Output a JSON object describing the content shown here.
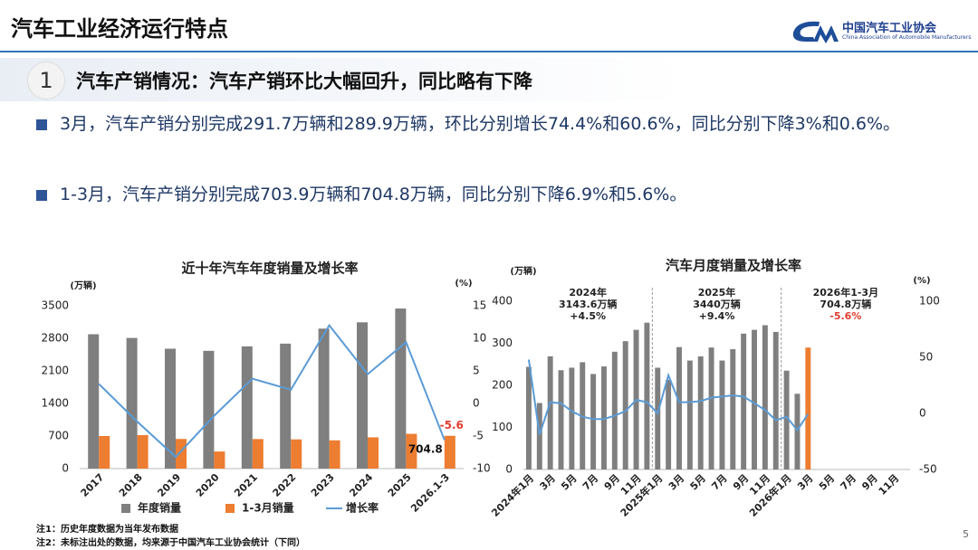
{
  "header": {
    "title": "汽车工业经济运行特点",
    "org_cn": "中国汽车工业协会",
    "org_en": "China Association of Automobile Manufacturers"
  },
  "section": {
    "number": "1",
    "title": "汽车产销情况：汽车产销环比大幅回升，同比略有下降"
  },
  "bullets": [
    "3月，汽车产销分别完成291.7万辆和289.9万辆，环比分别增长74.4%和60.6%，同比分别下降3%和0.6%。",
    "1-3月，汽车产销分别完成703.9万辆和704.8万辆，同比分别下降6.9%和5.6%。"
  ],
  "chart_data": [
    {
      "type": "bar",
      "bar_mode": "group",
      "title": "近十年汽车年度销量及增长率",
      "y_label": "(万辆)",
      "y2_label": "(%)",
      "categories": [
        "2017",
        "2018",
        "2019",
        "2020",
        "2021",
        "2022",
        "2023",
        "2024",
        "2025",
        "2026.1-3"
      ],
      "series": [
        {
          "name": "年度销量",
          "color": "#7f7f7f",
          "values": [
            2888,
            2808,
            2577,
            2531,
            2627,
            2686,
            3009,
            3144,
            3440,
            null
          ]
        },
        {
          "name": "1-3月销量",
          "color": "#ed7d31",
          "values": [
            700,
            720,
            637,
            367,
            635,
            628,
            607,
            672,
            747,
            704.8
          ],
          "label_last": true
        },
        {
          "name": "增长率",
          "type": "line",
          "axis": "y2",
          "color": "#5b9bd5",
          "values": [
            3,
            -2.8,
            -8.2,
            -1.9,
            3.8,
            2.1,
            12,
            4.5,
            9.4,
            -5.6
          ],
          "label_last": true,
          "label_color": "#e03c31"
        }
      ],
      "ylim": [
        0,
        3500
      ],
      "yticks": [
        0,
        700,
        1400,
        2100,
        2800,
        3500
      ],
      "y2lim": [
        -10,
        15
      ],
      "y2ticks": [
        -10,
        -5,
        0,
        5,
        10,
        15
      ],
      "grid": false,
      "legend": "bottom"
    },
    {
      "type": "bar",
      "bar_mode": "overlay",
      "title": "汽车月度销量及增长率",
      "y_label": "(万辆)",
      "y2_label": "(%)",
      "categories": [
        "2024年1月",
        null,
        "3月",
        null,
        "5月",
        null,
        "7月",
        null,
        "9月",
        null,
        "11月",
        null,
        "2025年1月",
        null,
        "3月",
        null,
        "5月",
        null,
        "7月",
        null,
        "9月",
        null,
        "11月",
        null,
        "2026年1月",
        null,
        "3月",
        null,
        "5月",
        null,
        "7月",
        null,
        "9月",
        null,
        "11月",
        null
      ],
      "series": [
        {
          "color": "#7f7f7f",
          "values": [
            244,
            158,
            269,
            236,
            242,
            255,
            227,
            245,
            280,
            305,
            332,
            349,
            242,
            213,
            291,
            259,
            269,
            290,
            259,
            286,
            323,
            332,
            343,
            327,
            235,
            180,
            null,
            null,
            null,
            null,
            null,
            null,
            null,
            null,
            null,
            null
          ]
        },
        {
          "color": "#ed7d31",
          "values": [
            null,
            null,
            null,
            null,
            null,
            null,
            null,
            null,
            null,
            null,
            null,
            null,
            null,
            null,
            null,
            null,
            null,
            null,
            null,
            null,
            null,
            null,
            null,
            null,
            null,
            null,
            289.9,
            null,
            null,
            null,
            null,
            null,
            null,
            null,
            null,
            null
          ]
        },
        {
          "type": "line",
          "axis": "y2",
          "color": "#5b9bd5",
          "values": [
            48,
            -19,
            10,
            9,
            2,
            -3,
            -5,
            -5,
            -2,
            2,
            12,
            10,
            0,
            34,
            10,
            10,
            11,
            14,
            15,
            16,
            15,
            9,
            3,
            -6,
            -3,
            -15,
            -0.6,
            null,
            null,
            null,
            null,
            null,
            null,
            null,
            null,
            null
          ]
        }
      ],
      "ylim": [
        0,
        400
      ],
      "yticks": [
        0,
        100,
        200,
        300,
        400
      ],
      "y2lim": [
        -50,
        100
      ],
      "y2ticks": [
        -50,
        0,
        50,
        100
      ],
      "grid": false,
      "annotations": [
        {
          "lines": [
            "2024年",
            "3143.6万辆",
            "+4.5%"
          ]
        },
        {
          "lines": [
            "2025年",
            "3440万辆",
            "+9.4%"
          ]
        },
        {
          "lines": [
            "2026年1-3月",
            "704.8万辆",
            "-5.6%"
          ],
          "last_line_color": "#e03c31"
        }
      ]
    }
  ],
  "notes": [
    "注1：历史年度数据为当年发布数据",
    "注2：未标注出处的数据，均来源于中国汽车工业协会统计（下同）"
  ],
  "page_number": "5"
}
